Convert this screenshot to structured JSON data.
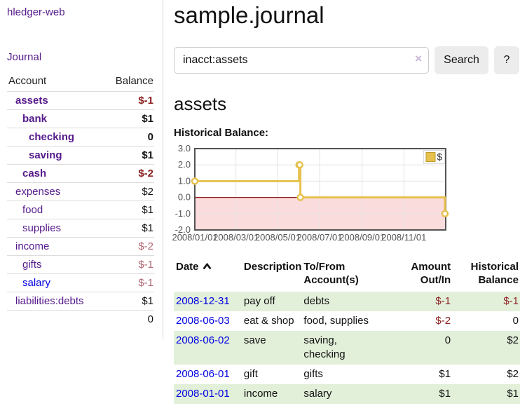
{
  "colors": {
    "purple": "#551A8B",
    "blue": "#0000E0",
    "neg_strong": "#8B1E1E",
    "neg_muted": "#B06570",
    "stripe": "#E2F0DA",
    "btn_bg": "#ECECEC",
    "line_gold": "#E6C14E",
    "gold_dark": "#C29B2C",
    "area_pink": "#FBDCDC",
    "zero_red": "#8B1A1A",
    "axis_text": "#545454",
    "grid": "#E4E4E4",
    "plot_border": "#545454"
  },
  "sidebar": {
    "brand": "hledger-web",
    "nav": {
      "journal": "Journal"
    },
    "accounts": {
      "headers": {
        "account": "Account",
        "balance": "Balance"
      },
      "rows": [
        {
          "name": "assets",
          "balance": "$-1",
          "level": 1,
          "bold": true,
          "balance_style": "neg-strong"
        },
        {
          "name": "bank",
          "balance": "$1",
          "level": 2,
          "bold": true,
          "balance_style": "pos"
        },
        {
          "name": "checking",
          "balance": "0",
          "level": 3,
          "bold": true,
          "balance_style": "pos"
        },
        {
          "name": "saving",
          "balance": "$1",
          "level": 3,
          "bold": true,
          "balance_style": "pos"
        },
        {
          "name": "cash",
          "balance": "$-2",
          "level": 2,
          "bold": true,
          "balance_style": "neg-strong"
        },
        {
          "name": "expenses",
          "balance": "$2",
          "level": 1,
          "bold": false,
          "balance_style": "pos"
        },
        {
          "name": "food",
          "balance": "$1",
          "level": 2,
          "bold": false,
          "balance_style": "pos"
        },
        {
          "name": "supplies",
          "balance": "$1",
          "level": 2,
          "bold": false,
          "balance_style": "pos"
        },
        {
          "name": "income",
          "balance": "$-2",
          "level": 1,
          "bold": false,
          "balance_style": "neg-muted"
        },
        {
          "name": "gifts",
          "balance": "$-1",
          "level": 2,
          "bold": false,
          "balance_style": "neg-muted"
        },
        {
          "name": "salary",
          "balance": "$-1",
          "level": 2,
          "bold": false,
          "balance_style": "neg-muted",
          "blue_link": true
        },
        {
          "name": "liabilities:debts",
          "balance": "$1",
          "level": 1,
          "bold": false,
          "balance_style": "pos"
        }
      ],
      "total": "0"
    }
  },
  "header": {
    "title": "sample.journal"
  },
  "search": {
    "value": "inacct:assets",
    "clear_icon": "×",
    "button_label": "Search",
    "help_label": "?"
  },
  "account_page": {
    "heading": "assets",
    "chart_label": "Historical Balance:"
  },
  "chart_data": {
    "type": "line",
    "step": true,
    "title": "Historical Balance:",
    "series": [
      {
        "name": "$",
        "color": "#E6C14E",
        "points": [
          [
            "2008-01-01",
            1
          ],
          [
            "2008-06-01",
            2
          ],
          [
            "2008-06-02",
            2
          ],
          [
            "2008-06-03",
            0
          ],
          [
            "2008-12-31",
            -1
          ]
        ]
      }
    ],
    "x_range": [
      "2008-01-01",
      "2009-01-01"
    ],
    "y_range": [
      -2,
      3
    ],
    "y_ticks": [
      "3.0",
      "2.0",
      "1.0",
      "0.0",
      "-1.0",
      "-2.0"
    ],
    "x_ticks": [
      {
        "label": "2008/01/01",
        "date": "2008-01-01"
      },
      {
        "label": "2008/03/01",
        "date": "2008-03-01"
      },
      {
        "label": "2008/05/01",
        "date": "2008-05-01"
      },
      {
        "label": "2008/07/01",
        "date": "2008-07-01"
      },
      {
        "label": "2008/09/01",
        "date": "2008-09-01"
      },
      {
        "label": "2008/11/01",
        "date": "2008-11-01"
      }
    ],
    "legend": {
      "position": "top-right",
      "label": "$"
    },
    "grid": true,
    "negative_area_fill": "#FBDCDC",
    "zero_line_color": "#8B1A1A"
  },
  "register": {
    "headers": [
      {
        "label": "Date",
        "sorted": "asc",
        "align": "left"
      },
      {
        "label": "Description",
        "align": "left"
      },
      {
        "label": "To/From Account(s)",
        "align": "left"
      },
      {
        "label": "Amount Out/In",
        "align": "right"
      },
      {
        "label": "Historical Balance",
        "align": "right"
      }
    ],
    "rows": [
      {
        "date": "2008-12-31",
        "description": "pay off",
        "accounts": [
          "debts"
        ],
        "amount": "$-1",
        "amount_neg": true,
        "balance": "$-1",
        "balance_neg": true
      },
      {
        "date": "2008-06-03",
        "description": "eat & shop",
        "accounts": [
          "food",
          "supplies"
        ],
        "amount": "$-2",
        "amount_neg": true,
        "balance": "0",
        "balance_neg": false
      },
      {
        "date": "2008-06-02",
        "description": "save",
        "accounts": [
          "saving",
          "checking"
        ],
        "amount": "0",
        "amount_neg": false,
        "balance": "$2",
        "balance_neg": false
      },
      {
        "date": "2008-06-01",
        "description": "gift",
        "accounts": [
          "gifts"
        ],
        "amount": "$1",
        "amount_neg": false,
        "balance": "$2",
        "balance_neg": false
      },
      {
        "date": "2008-01-01",
        "description": "income",
        "accounts": [
          "salary"
        ],
        "amount": "$1",
        "amount_neg": false,
        "balance": "$1",
        "balance_neg": false
      }
    ]
  }
}
